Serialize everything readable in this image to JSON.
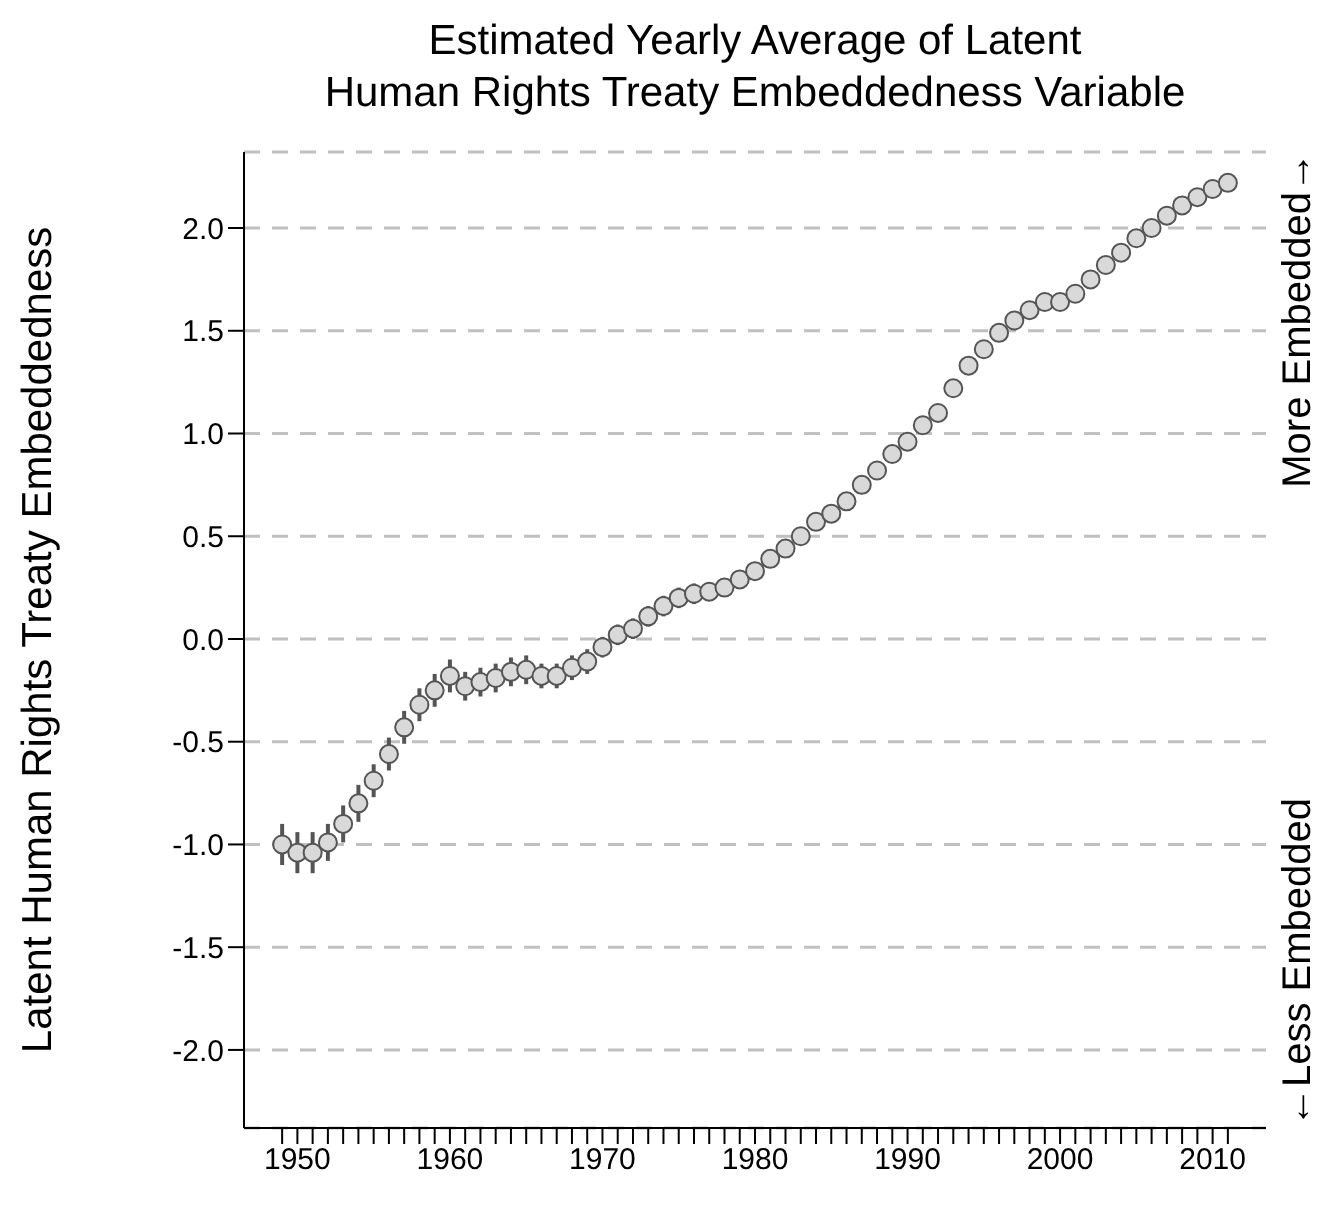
{
  "chart_data": {
    "type": "scatter",
    "title": "Estimated Yearly Average of Latent\nHuman Rights Treaty Embeddedness Variable",
    "ylabel": "Latent Human Rights Treaty Embeddedness",
    "annotations": [
      "←Less Embedded",
      "More Embedded→"
    ],
    "x": [
      1949,
      1950,
      1951,
      1952,
      1953,
      1954,
      1955,
      1956,
      1957,
      1958,
      1959,
      1960,
      1961,
      1962,
      1963,
      1964,
      1965,
      1966,
      1967,
      1968,
      1969,
      1970,
      1971,
      1972,
      1973,
      1974,
      1975,
      1976,
      1977,
      1978,
      1979,
      1980,
      1981,
      1982,
      1983,
      1984,
      1985,
      1986,
      1987,
      1988,
      1989,
      1990,
      1991,
      1992,
      1993,
      1994,
      1995,
      1996,
      1997,
      1998,
      1999,
      2000,
      2001,
      2002,
      2003,
      2004,
      2005,
      2006,
      2007,
      2008,
      2009,
      2010,
      2011
    ],
    "series": [
      {
        "color": "#d9d9d9",
        "values": [
          -1.0,
          -1.04,
          -1.04,
          -0.99,
          -0.9,
          -0.8,
          -0.69,
          -0.56,
          -0.43,
          -0.32,
          -0.25,
          -0.18,
          -0.23,
          -0.21,
          -0.19,
          -0.16,
          -0.15,
          -0.18,
          -0.18,
          -0.14,
          -0.11,
          -0.04,
          0.02,
          0.05,
          0.11,
          0.16,
          0.2,
          0.22,
          0.23,
          0.25,
          0.29,
          0.33,
          0.39,
          0.44,
          0.5,
          0.57,
          0.61,
          0.67,
          0.75,
          0.82,
          0.9,
          0.96,
          1.04,
          1.1,
          1.22,
          1.33,
          1.41,
          1.49,
          1.55,
          1.6,
          1.64,
          1.64,
          1.68,
          1.75,
          1.82,
          1.88,
          1.95,
          2.0,
          2.06,
          2.11,
          2.15,
          2.19,
          2.22
        ],
        "errors": [
          0.1,
          0.1,
          0.1,
          0.09,
          0.09,
          0.09,
          0.08,
          0.08,
          0.08,
          0.08,
          0.08,
          0.08,
          0.07,
          0.07,
          0.07,
          0.07,
          0.07,
          0.06,
          0.06,
          0.06,
          0.06,
          0.05,
          0.05,
          0.05,
          0.05,
          0.05,
          0.05,
          0.05,
          0.04,
          0.04,
          0.04,
          0.04,
          0.04,
          0.04,
          0.04,
          0.04,
          0.04,
          0.04,
          0.04,
          0.04,
          0.04,
          0.04,
          0.03,
          0.03,
          0.03,
          0.03,
          0.03,
          0.03,
          0.03,
          0.03,
          0.03,
          0.03,
          0.03,
          0.03,
          0.03,
          0.03,
          0.03,
          0.03,
          0.03,
          0.03,
          0.03,
          0.03,
          0.03
        ]
      }
    ],
    "xlim": [
      1946.5,
      2013.5
    ],
    "xticks": [
      {
        "value": 1949,
        "label": null
      },
      1950,
      {
        "value": 1951,
        "label": null
      },
      {
        "value": 1952,
        "label": null
      },
      {
        "value": 1953,
        "label": null
      },
      {
        "value": 1954,
        "label": null
      },
      {
        "value": 1955,
        "label": null
      },
      {
        "value": 1956,
        "label": null
      },
      {
        "value": 1957,
        "label": null
      },
      {
        "value": 1958,
        "label": null
      },
      {
        "value": 1959,
        "label": null
      },
      1960,
      {
        "value": 1961,
        "label": null
      },
      {
        "value": 1962,
        "label": null
      },
      {
        "value": 1963,
        "label": null
      },
      {
        "value": 1964,
        "label": null
      },
      {
        "value": 1965,
        "label": null
      },
      {
        "value": 1966,
        "label": null
      },
      {
        "value": 1967,
        "label": null
      },
      {
        "value": 1968,
        "label": null
      },
      {
        "value": 1969,
        "label": null
      },
      1970,
      {
        "value": 1971,
        "label": null
      },
      {
        "value": 1972,
        "label": null
      },
      {
        "value": 1973,
        "label": null
      },
      {
        "value": 1974,
        "label": null
      },
      {
        "value": 1975,
        "label": null
      },
      {
        "value": 1976,
        "label": null
      },
      {
        "value": 1977,
        "label": null
      },
      {
        "value": 1978,
        "label": null
      },
      {
        "value": 1979,
        "label": null
      },
      1980,
      {
        "value": 1981,
        "label": null
      },
      {
        "value": 1982,
        "label": null
      },
      {
        "value": 1983,
        "label": null
      },
      {
        "value": 1984,
        "label": null
      },
      {
        "value": 1985,
        "label": null
      },
      {
        "value": 1986,
        "label": null
      },
      {
        "value": 1987,
        "label": null
      },
      {
        "value": 1988,
        "label": null
      },
      {
        "value": 1989,
        "label": null
      },
      1990,
      {
        "value": 1991,
        "label": null
      },
      {
        "value": 1992,
        "label": null
      },
      {
        "value": 1993,
        "label": null
      },
      {
        "value": 1994,
        "label": null
      },
      {
        "value": 1995,
        "label": null
      },
      {
        "value": 1996,
        "label": null
      },
      {
        "value": 1997,
        "label": null
      },
      {
        "value": 1998,
        "label": null
      },
      {
        "value": 1999,
        "label": null
      },
      2000,
      {
        "value": 2001,
        "label": null
      },
      {
        "value": 2002,
        "label": null
      },
      {
        "value": 2003,
        "label": null
      },
      {
        "value": 2004,
        "label": null
      },
      {
        "value": 2005,
        "label": null
      },
      {
        "value": 2006,
        "label": null
      },
      {
        "value": 2007,
        "label": null
      },
      {
        "value": 2008,
        "label": null
      },
      {
        "value": 2009,
        "label": null
      },
      2010,
      {
        "value": 2011,
        "label": null
      }
    ],
    "ylim": [
      -2.38,
      2.37
    ],
    "yticks": [
      {
        "value": -2,
        "label": "-2.0"
      },
      {
        "value": -1.5,
        "label": "-1.5"
      },
      {
        "value": -1,
        "label": "-1.0"
      },
      {
        "value": -0.5,
        "label": "-0.5"
      },
      {
        "value": 0,
        "label": "0.0"
      },
      {
        "value": 0.5,
        "label": "0.5"
      },
      {
        "value": 1,
        "label": "1.0"
      },
      {
        "value": 1.5,
        "label": "1.5"
      },
      {
        "value": 2,
        "label": "2.0"
      }
    ],
    "grid": "y",
    "marker": "circle",
    "line_style": "dashed",
    "legend": false
  }
}
